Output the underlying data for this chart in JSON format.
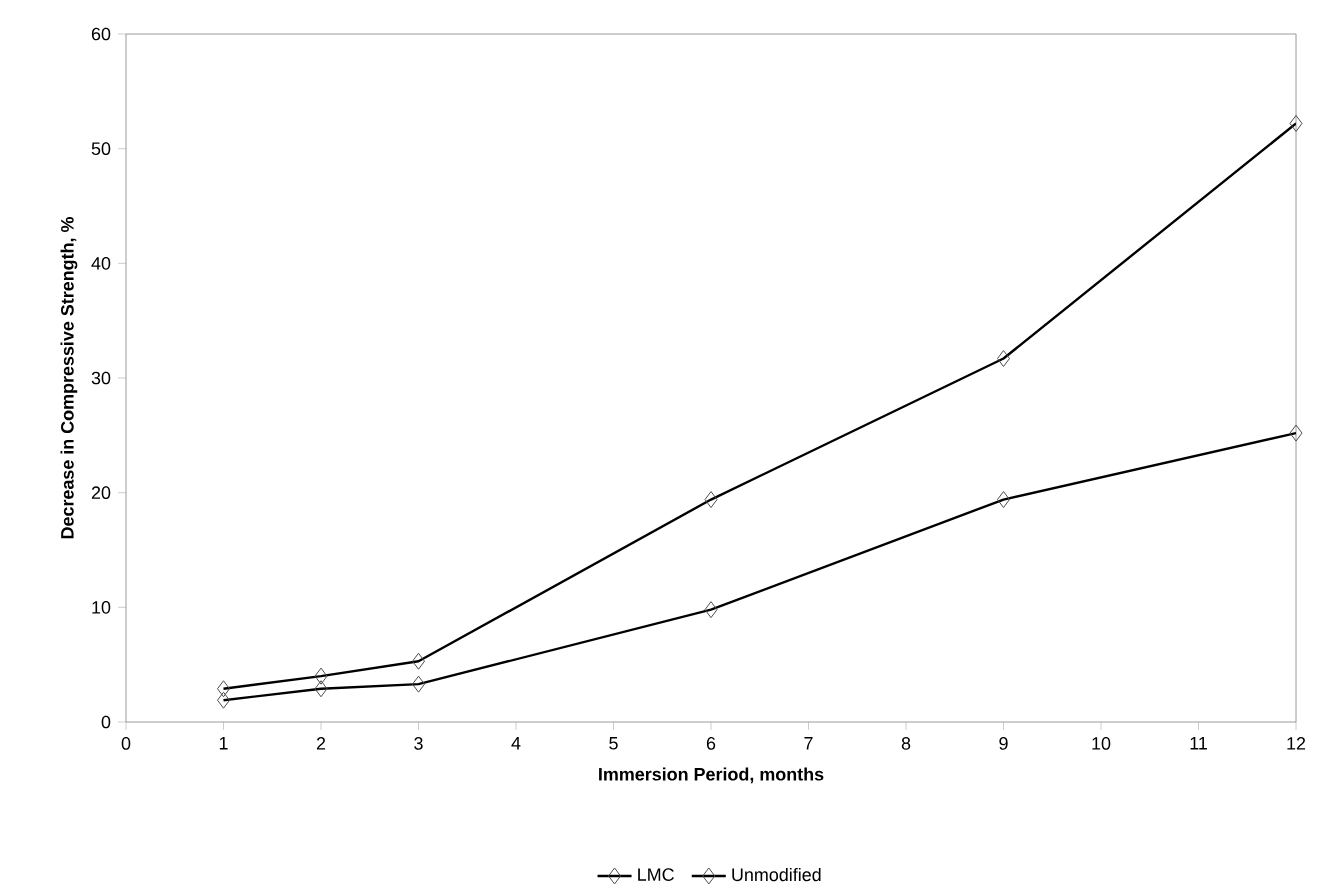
{
  "chart_data": {
    "type": "line",
    "xlabel": "Immersion Period, months",
    "ylabel": "Decrease in Compressive Strength, %",
    "x": [
      1,
      2,
      3,
      6,
      9,
      12
    ],
    "series": [
      {
        "name": "LMC",
        "color": "#000000",
        "values": [
          1.9,
          2.9,
          3.3,
          9.8,
          19.4,
          25.2
        ]
      },
      {
        "name": "Unmodified",
        "color": "#000000",
        "values": [
          2.9,
          4.0,
          5.3,
          19.4,
          31.7,
          52.2
        ]
      }
    ],
    "xlim": [
      0,
      12
    ],
    "xticks": [
      0,
      1,
      2,
      3,
      4,
      5,
      6,
      7,
      8,
      9,
      10,
      11,
      12
    ],
    "ylim": [
      0,
      60
    ],
    "yticks": [
      0,
      10,
      20,
      30,
      40,
      50,
      60
    ],
    "grid": false,
    "legend": "bottom",
    "marker": "diamond",
    "line_style": "solid"
  }
}
